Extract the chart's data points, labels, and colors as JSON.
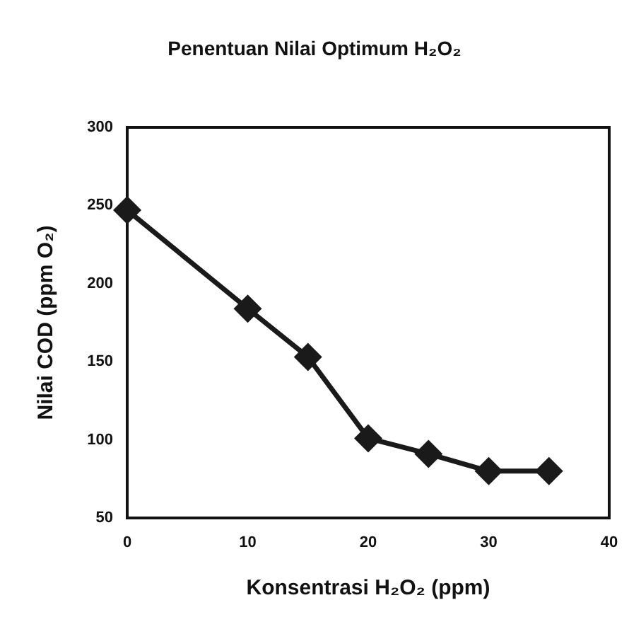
{
  "chart_data": {
    "type": "line",
    "title": "Penentuan Nilai Optimum H₂O₂",
    "xlabel": "Konsentrasi H₂O₂ (ppm)",
    "ylabel": "Nilai COD (ppm O₂)",
    "x": [
      0,
      10,
      15,
      20,
      25,
      30,
      35
    ],
    "series": [
      {
        "color": "#1a1a1a",
        "values": [
          247,
          184,
          153,
          101,
          91,
          80,
          80
        ]
      }
    ],
    "xlim": [
      0,
      40
    ],
    "xticks": [
      0,
      10,
      20,
      30,
      40
    ],
    "ylim": [
      50,
      300
    ],
    "yticks": [
      50,
      100,
      150,
      200,
      250,
      300
    ],
    "grid": false,
    "marker": "diamond",
    "line_style": "solid"
  }
}
